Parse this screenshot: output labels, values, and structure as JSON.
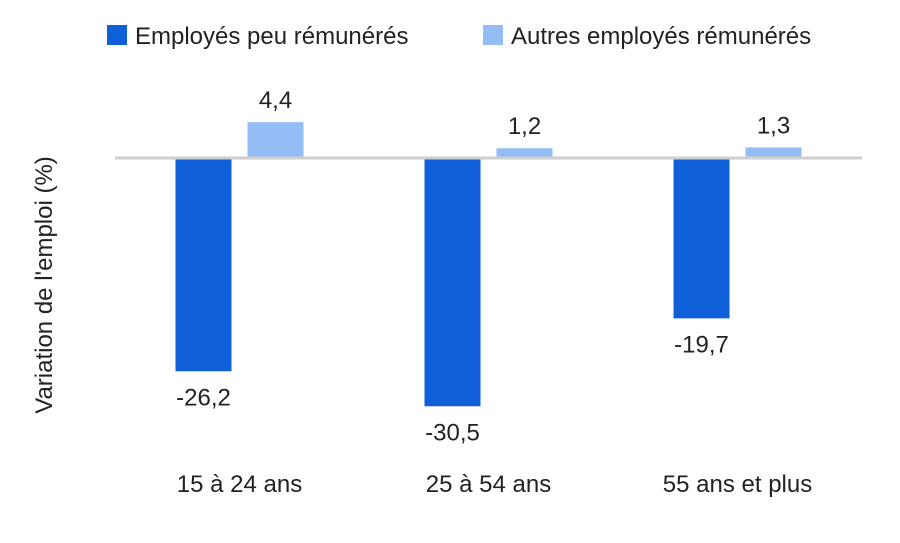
{
  "chart_data": {
    "type": "bar",
    "title": "",
    "xlabel": "",
    "ylabel": "Variation de l'emploi (%)",
    "categories": [
      "15 à 24 ans",
      "25 à 54 ans",
      "55 ans et plus"
    ],
    "series": [
      {
        "name": "Employés peu rémunérés",
        "values": [
          -26.2,
          -30.5,
          -19.7
        ],
        "labels": [
          "-26,2",
          "-30,5",
          "-19,7"
        ],
        "color": "#0f5fd8"
      },
      {
        "name": "Autres employés rémunérés",
        "values": [
          4.4,
          1.2,
          1.3
        ],
        "labels": [
          "4,4",
          "1,2",
          "1,3"
        ],
        "color": "#95bdf5"
      }
    ],
    "ylim": [
      -35,
      10
    ],
    "grid": false,
    "legend_position": "top",
    "axis_color": "#cfcfcf"
  }
}
